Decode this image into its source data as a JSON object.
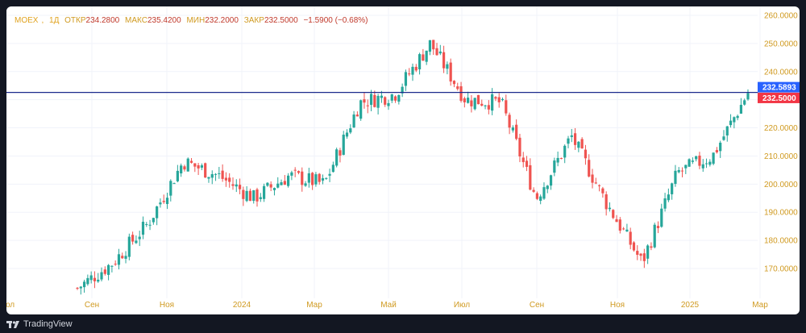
{
  "header": {
    "symbol": "MOEX",
    "interval": "1Д",
    "open_label": "ОТКР",
    "open_value": "234.2800",
    "high_label": "МАКС",
    "high_value": "235.4200",
    "low_label": "МИН",
    "low_value": "232.2000",
    "close_label": "ЗАКР",
    "close_value": "232.5000",
    "change": "−1.5900 (−0.68%)"
  },
  "footer": {
    "brand": "TradingView"
  },
  "colors": {
    "up": "#26a69a",
    "down": "#ef5350",
    "hline": "#1b2a8c",
    "axis_text": "#d09a20",
    "grid": "#f0f3fa"
  },
  "chart_data": {
    "type": "candlestick",
    "title": "",
    "y_axis_side": "right",
    "ylim": [
      160,
      262
    ],
    "y_ticks": [
      "260.0000",
      "250.0000",
      "240.0000",
      "230.0000",
      "220.0000",
      "210.0000",
      "200.0000",
      "190.0000",
      "180.0000",
      "170.0000"
    ],
    "x_ticks": [
      "Июл",
      "Сен",
      "Ноя",
      "2024",
      "Мар",
      "Май",
      "Июл",
      "Сен",
      "Ноя",
      "2025",
      "Мар"
    ],
    "horizontal_line": {
      "value": 232.5893,
      "label": "232.5893",
      "color": "#2962ff"
    },
    "last_price": {
      "value": 232.5,
      "label": "232.5000",
      "color": "#f23645"
    },
    "key_points": [
      {
        "x": "Авг 2023",
        "close": 163
      },
      {
        "x": "Сен 2023",
        "close": 172
      },
      {
        "x": "Окт 2023",
        "close": 186
      },
      {
        "x": "Ноя 2023",
        "close": 208
      },
      {
        "x": "Дек 2023",
        "close": 203
      },
      {
        "x": "Янв 2024",
        "close": 195
      },
      {
        "x": "Фев 2024",
        "close": 203
      },
      {
        "x": "Мар 2024",
        "close": 200
      },
      {
        "x": "Апр 2024",
        "close": 229
      },
      {
        "x": "Май 2024",
        "close": 232
      },
      {
        "x": "Июн 2024",
        "close": 250
      },
      {
        "x": "Июл 2024",
        "close": 230
      },
      {
        "x": "Авг 2024",
        "close": 229
      },
      {
        "x": "Сен 2024",
        "close": 195
      },
      {
        "x": "Окт 2024",
        "close": 217
      },
      {
        "x": "Ноя 2024",
        "close": 193
      },
      {
        "x": "Дек 2024",
        "close": 172
      },
      {
        "x": "Янв 2025",
        "close": 204
      },
      {
        "x": "Фев 2025",
        "close": 210
      },
      {
        "x": "Мар 2025",
        "close": 232.5
      }
    ]
  }
}
